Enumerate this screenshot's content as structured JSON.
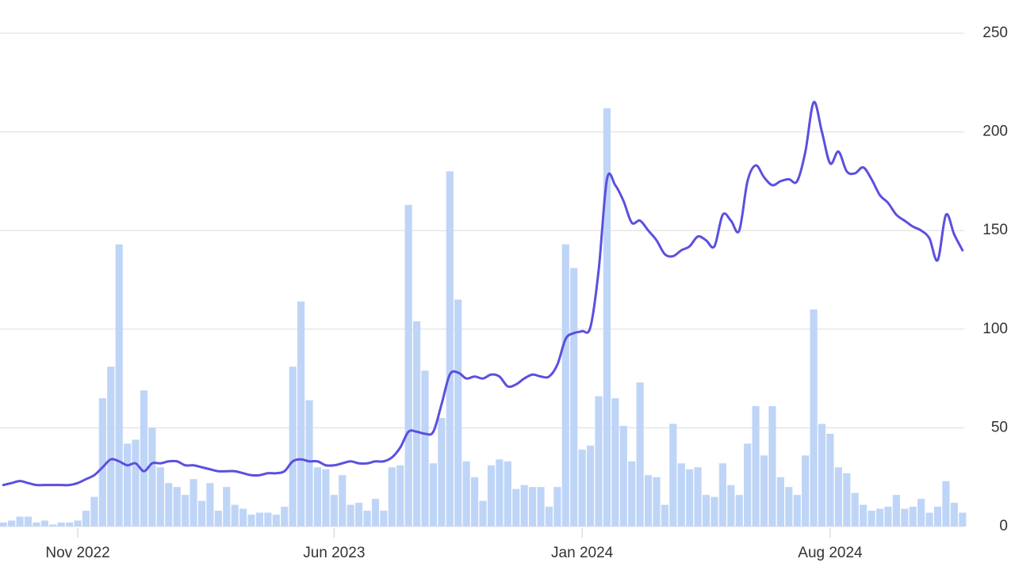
{
  "chart_data": {
    "type": "combo",
    "categories": [
      null,
      null,
      null,
      null,
      null,
      null,
      null,
      null,
      null,
      "Nov 2022",
      null,
      null,
      null,
      null,
      null,
      null,
      null,
      null,
      null,
      null,
      null,
      null,
      null,
      null,
      null,
      null,
      null,
      null,
      null,
      null,
      null,
      null,
      null,
      null,
      null,
      null,
      null,
      null,
      null,
      null,
      "Jun 2023",
      null,
      null,
      null,
      null,
      null,
      null,
      null,
      null,
      null,
      null,
      null,
      null,
      null,
      null,
      null,
      null,
      null,
      null,
      null,
      null,
      null,
      null,
      null,
      null,
      null,
      null,
      null,
      null,
      null,
      "Jan 2024",
      null,
      null,
      null,
      null,
      null,
      null,
      null,
      null,
      null,
      null,
      null,
      null,
      null,
      null,
      null,
      null,
      null,
      null,
      null,
      null,
      null,
      null,
      null,
      null,
      null,
      null,
      null,
      null,
      null,
      "Aug 2024",
      null,
      null,
      null,
      null,
      null,
      null,
      null,
      null,
      null,
      null,
      null,
      null,
      null,
      null,
      null,
      null
    ],
    "series": [
      {
        "type": "bar",
        "color": "#bfd5f7",
        "values": [
          2,
          3,
          5,
          5,
          2,
          3,
          1,
          2,
          2,
          3,
          8,
          15,
          65,
          81,
          143,
          42,
          44,
          69,
          50,
          30,
          22,
          20,
          16,
          24,
          13,
          22,
          8,
          20,
          11,
          9,
          6,
          7,
          7,
          6,
          10,
          81,
          114,
          64,
          30,
          29,
          16,
          26,
          11,
          12,
          8,
          14,
          8,
          30,
          31,
          163,
          104,
          79,
          32,
          55,
          180,
          115,
          33,
          25,
          13,
          31,
          34,
          33,
          19,
          21,
          20,
          20,
          10,
          20,
          143,
          131,
          39,
          41,
          66,
          212,
          65,
          51,
          33,
          73,
          26,
          25,
          11,
          52,
          32,
          29,
          30,
          16,
          15,
          32,
          21,
          16,
          42,
          61,
          36,
          61,
          25,
          20,
          16,
          36,
          110,
          52,
          47,
          30,
          27,
          17,
          11,
          8,
          9,
          10,
          16,
          9,
          10,
          14,
          7,
          10,
          23,
          12,
          7
        ]
      },
      {
        "type": "line",
        "color": "#5b4fe0",
        "values": [
          21,
          22,
          23,
          22,
          21,
          21,
          21,
          21,
          21,
          22,
          24,
          26,
          30,
          34,
          33,
          31,
          32,
          28,
          32,
          32,
          33,
          33,
          31,
          31,
          30,
          29,
          28,
          28,
          28,
          27,
          26,
          26,
          27,
          27,
          28,
          33,
          34,
          33,
          33,
          31,
          31,
          32,
          33,
          32,
          32,
          33,
          33,
          35,
          40,
          48,
          48,
          47,
          48,
          62,
          77,
          78,
          75,
          76,
          75,
          77,
          76,
          71,
          72,
          75,
          77,
          76,
          76,
          82,
          95,
          98,
          99,
          101,
          130,
          176,
          173,
          165,
          154,
          155,
          150,
          145,
          138,
          137,
          140,
          142,
          147,
          145,
          142,
          158,
          155,
          150,
          175,
          183,
          177,
          173,
          175,
          176,
          175,
          190,
          215,
          200,
          184,
          190,
          180,
          179,
          182,
          176,
          168,
          164,
          158,
          155,
          152,
          150,
          146,
          135,
          158,
          148,
          140
        ]
      }
    ],
    "ylim": [
      0,
      250
    ],
    "yticks": [
      0,
      50,
      100,
      150,
      200,
      250
    ],
    "grid": true
  }
}
